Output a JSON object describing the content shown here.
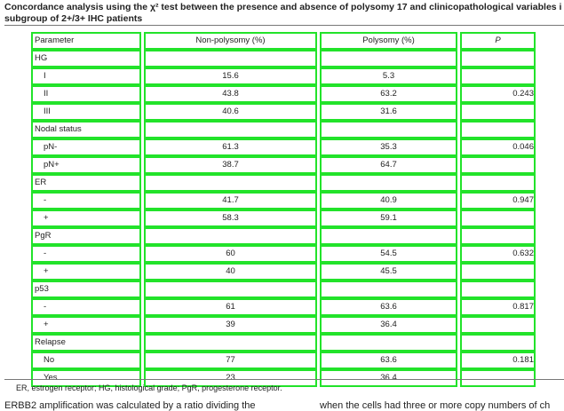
{
  "title_line1": "Concordance analysis using the χ² test between the presence and absence of polysomy 17 and clinicopathological variables i",
  "title_line2": "subgroup of 2+/3+ IHC patients",
  "columns": [
    "Parameter",
    "Non-polysomy (%)",
    "Polysomy (%)",
    "P"
  ],
  "rows": [
    {
      "type": "group",
      "label": "HG"
    },
    {
      "type": "data",
      "label": "I",
      "non": "15.6",
      "poly": "5.3",
      "p": ""
    },
    {
      "type": "data",
      "label": "II",
      "non": "43.8",
      "poly": "63.2",
      "p": "0.243"
    },
    {
      "type": "data",
      "label": "III",
      "non": "40.6",
      "poly": "31.6",
      "p": ""
    },
    {
      "type": "group",
      "label": "Nodal status"
    },
    {
      "type": "data",
      "label": "pN-",
      "non": "61.3",
      "poly": "35.3",
      "p": "0.046"
    },
    {
      "type": "data",
      "label": "pN+",
      "non": "38.7",
      "poly": "64.7",
      "p": ""
    },
    {
      "type": "group",
      "label": "ER"
    },
    {
      "type": "data",
      "label": "-",
      "non": "41.7",
      "poly": "40.9",
      "p": "0.947"
    },
    {
      "type": "data",
      "label": "+",
      "non": "58.3",
      "poly": "59.1",
      "p": ""
    },
    {
      "type": "group",
      "label": "PgR"
    },
    {
      "type": "data",
      "label": "-",
      "non": "60",
      "poly": "54.5",
      "p": "0.632"
    },
    {
      "type": "data",
      "label": "+",
      "non": "40",
      "poly": "45.5",
      "p": ""
    },
    {
      "type": "group",
      "label": "p53"
    },
    {
      "type": "data",
      "label": "-",
      "non": "61",
      "poly": "63.6",
      "p": "0.817"
    },
    {
      "type": "data",
      "label": "+",
      "non": "39",
      "poly": "36.4",
      "p": ""
    },
    {
      "type": "group",
      "label": "Relapse"
    },
    {
      "type": "data",
      "label": "No",
      "non": "77",
      "poly": "63.6",
      "p": "0.181"
    },
    {
      "type": "data",
      "label": "Yes",
      "non": "23",
      "poly": "36.4",
      "p": ""
    }
  ],
  "footnote": "ER, estrogen receptor; HG, histological grade; PgR, progesterone receptor.",
  "body_left": "ERBB2 amplification was calculated by a ratio dividing the",
  "body_right": "when the cells had three or more copy numbers of ch"
}
